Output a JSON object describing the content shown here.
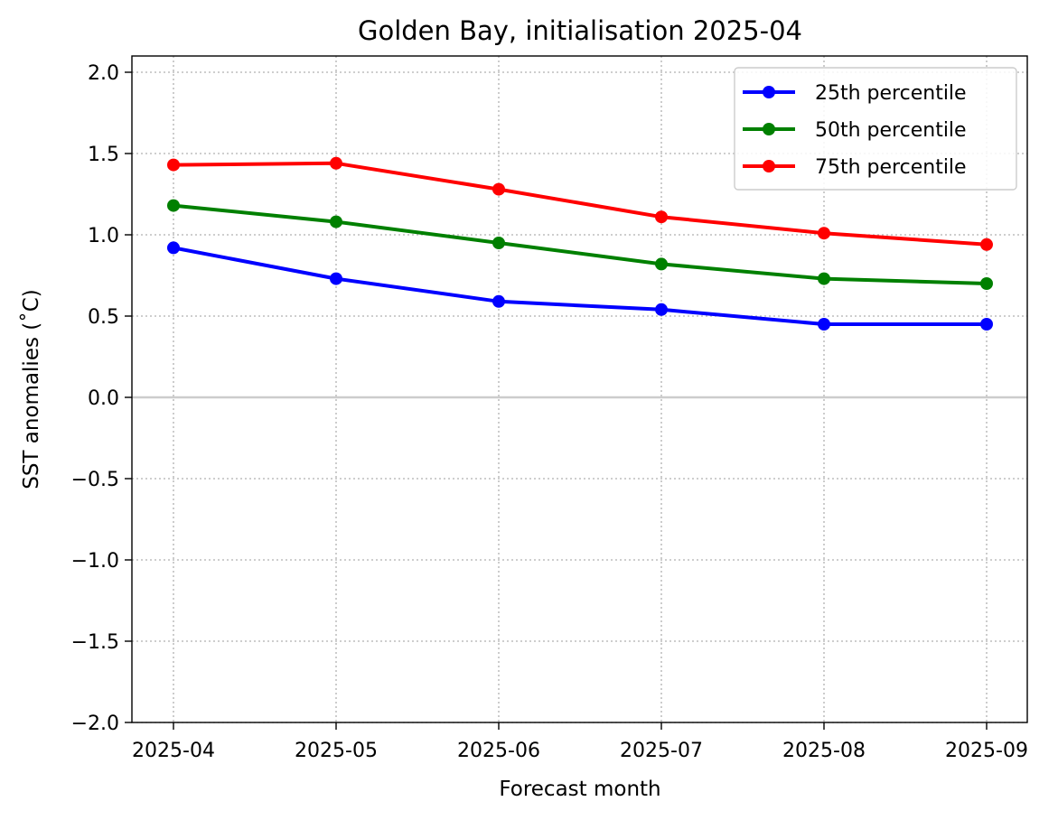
{
  "chart_data": {
    "type": "line",
    "title": "Golden Bay, initialisation 2025-04",
    "xlabel": "Forecast month",
    "ylabel": "SST anomalies (˚C)",
    "categories": [
      "2025-04",
      "2025-05",
      "2025-06",
      "2025-07",
      "2025-08",
      "2025-09"
    ],
    "yticks": [
      "−2.0",
      "−1.5",
      "−1.0",
      "−0.5",
      "0.0",
      "0.5",
      "1.0",
      "1.5",
      "2.0"
    ],
    "ylim": [
      -2.0,
      2.1
    ],
    "grid": true,
    "legend_position": "top-right",
    "zero_line": true,
    "series": [
      {
        "name": "25th percentile",
        "color": "#0000ff",
        "values": [
          0.92,
          0.73,
          0.59,
          0.54,
          0.45,
          0.45
        ]
      },
      {
        "name": "50th percentile",
        "color": "#008000",
        "values": [
          1.18,
          1.08,
          0.95,
          0.82,
          0.73,
          0.7
        ]
      },
      {
        "name": "75th percentile",
        "color": "#ff0000",
        "values": [
          1.43,
          1.44,
          1.28,
          1.11,
          1.01,
          0.94
        ]
      }
    ]
  }
}
